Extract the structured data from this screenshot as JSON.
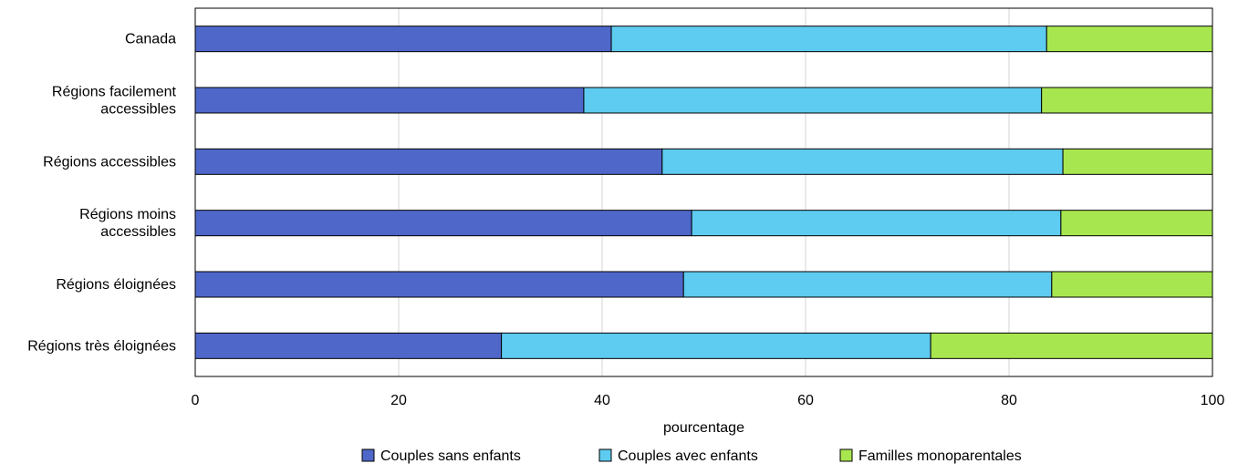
{
  "chart_data": {
    "type": "bar",
    "orientation": "horizontal",
    "stacked": true,
    "categories": [
      [
        "Canada"
      ],
      [
        "Régions facilement",
        "accessibles"
      ],
      [
        "Régions accessibles"
      ],
      [
        "Régions moins",
        "accessibles"
      ],
      [
        "Régions éloignées"
      ],
      [
        "Régions très éloignées"
      ]
    ],
    "series": [
      {
        "name": "Couples sans enfants",
        "color": "#4f67c9",
        "values": [
          40.9,
          38.2,
          45.9,
          48.8,
          48.0,
          30.1
        ]
      },
      {
        "name": "Couples avec enfants",
        "color": "#5ecbf0",
        "values": [
          42.8,
          45.0,
          39.4,
          36.3,
          36.2,
          42.2
        ]
      },
      {
        "name": "Familles monoparentales",
        "color": "#a8e64f",
        "values": [
          16.3,
          16.8,
          14.7,
          14.9,
          15.8,
          27.7
        ]
      }
    ],
    "xlabel": "pourcentage",
    "xlim": [
      0,
      100
    ],
    "xticks": [
      0,
      20,
      40,
      60,
      80,
      100
    ],
    "grid": "vertical",
    "legend_position": "bottom"
  }
}
